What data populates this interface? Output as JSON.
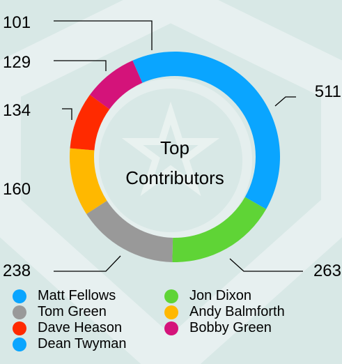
{
  "chart_data": {
    "type": "pie",
    "variant": "donut",
    "center_title": [
      "Top",
      "Contributors"
    ],
    "series": [
      {
        "name": "Matt Fellows",
        "value": 511,
        "color": "#0aa5ff"
      },
      {
        "name": "Jon Dixon",
        "value": 263,
        "color": "#5fd436"
      },
      {
        "name": "Tom Green",
        "value": 238,
        "color": "#999999"
      },
      {
        "name": "Andy Balmforth",
        "value": 160,
        "color": "#ffb800"
      },
      {
        "name": "Dave Heason",
        "value": 134,
        "color": "#ff2a00"
      },
      {
        "name": "Bobby Green",
        "value": 129,
        "color": "#d4137a"
      },
      {
        "name": "Dean Twyman",
        "value": 101,
        "color": "#0aa5ff"
      }
    ],
    "legend_order": [
      "Matt Fellows",
      "Jon Dixon",
      "Tom Green",
      "Andy Balmforth",
      "Dave Heason",
      "Bobby Green",
      "Dean Twyman"
    ],
    "legend_position": "bottom"
  }
}
